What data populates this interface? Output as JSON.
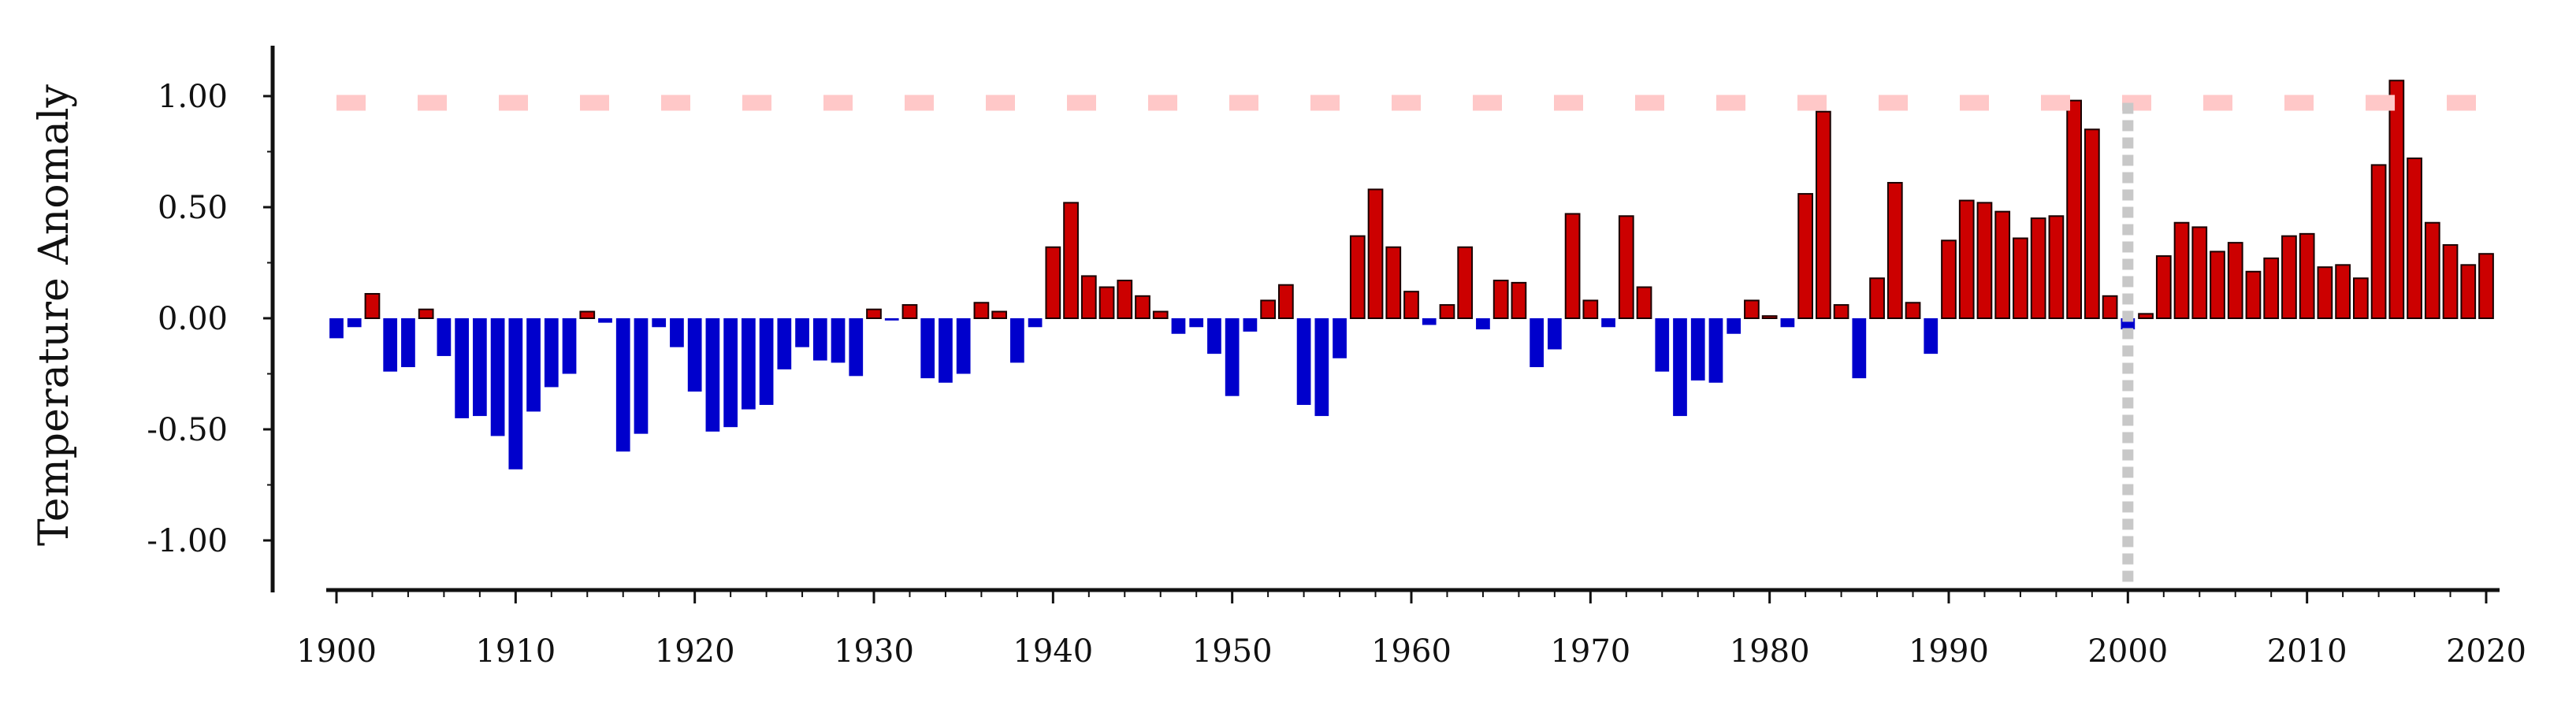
{
  "chart_data": {
    "type": "bar",
    "title": "",
    "xlabel": "",
    "ylabel": "Temperature Anomaly",
    "xlim": [
      1900,
      2020
    ],
    "ylim": [
      -1.2,
      1.2
    ],
    "x_ticks": [
      "1900",
      "1910",
      "1920",
      "1930",
      "1940",
      "1950",
      "1960",
      "1970",
      "1980",
      "1990",
      "2000",
      "2010",
      "2020"
    ],
    "y_ticks": [
      "1.00",
      "0.50",
      "0.00",
      "-0.50",
      "-1.00"
    ],
    "reference_line": {
      "y": 0.97,
      "style": "dashed"
    },
    "marker_line": {
      "x": 2000,
      "style": "dotted"
    },
    "colors": {
      "positive": "#cc0000",
      "negative": "#0000cc",
      "reference_line": "#ffc8c8",
      "marker_line": "#c8c8c8",
      "axis": "#111111"
    },
    "years": [
      1900,
      1901,
      1902,
      1903,
      1904,
      1905,
      1906,
      1907,
      1908,
      1909,
      1910,
      1911,
      1912,
      1913,
      1914,
      1915,
      1916,
      1917,
      1918,
      1919,
      1920,
      1921,
      1922,
      1923,
      1924,
      1925,
      1926,
      1927,
      1928,
      1929,
      1930,
      1931,
      1932,
      1933,
      1934,
      1935,
      1936,
      1937,
      1938,
      1939,
      1940,
      1941,
      1942,
      1943,
      1944,
      1945,
      1946,
      1947,
      1948,
      1949,
      1950,
      1951,
      1952,
      1953,
      1954,
      1955,
      1956,
      1957,
      1958,
      1959,
      1960,
      1961,
      1962,
      1963,
      1964,
      1965,
      1966,
      1967,
      1968,
      1969,
      1970,
      1971,
      1972,
      1973,
      1974,
      1975,
      1976,
      1977,
      1978,
      1979,
      1980,
      1981,
      1982,
      1983,
      1984,
      1985,
      1986,
      1987,
      1988,
      1989,
      1990,
      1991,
      1992,
      1993,
      1994,
      1995,
      1996,
      1997,
      1998,
      1999,
      2000,
      2001,
      2002,
      2003,
      2004,
      2005,
      2006,
      2007,
      2008,
      2009,
      2010,
      2011,
      2012,
      2013,
      2014,
      2015,
      2016,
      2017,
      2018,
      2019,
      2020
    ],
    "values": [
      -0.09,
      -0.04,
      0.11,
      -0.24,
      -0.22,
      0.04,
      -0.17,
      -0.45,
      -0.44,
      -0.53,
      -0.68,
      -0.42,
      -0.31,
      -0.25,
      0.03,
      -0.02,
      -0.6,
      -0.52,
      -0.04,
      -0.13,
      -0.33,
      -0.51,
      -0.49,
      -0.41,
      -0.39,
      -0.23,
      -0.13,
      -0.19,
      -0.2,
      -0.26,
      0.04,
      -0.01,
      0.06,
      -0.27,
      -0.29,
      -0.25,
      0.07,
      0.03,
      -0.2,
      -0.04,
      0.32,
      0.52,
      0.19,
      0.14,
      0.17,
      0.1,
      0.03,
      -0.07,
      -0.04,
      -0.16,
      -0.35,
      -0.06,
      0.08,
      0.15,
      -0.39,
      -0.44,
      -0.18,
      0.37,
      0.58,
      0.32,
      0.12,
      -0.03,
      0.06,
      0.32,
      -0.05,
      0.17,
      0.16,
      -0.22,
      -0.14,
      0.47,
      0.08,
      -0.04,
      0.46,
      0.14,
      -0.24,
      -0.44,
      -0.28,
      -0.29,
      -0.07,
      0.08,
      0.01,
      -0.04,
      0.56,
      0.93,
      0.06,
      -0.27,
      0.18,
      0.61,
      0.07,
      -0.16,
      0.35,
      0.53,
      0.52,
      0.48,
      0.36,
      0.45,
      0.46,
      0.98,
      0.85,
      0.1,
      -0.05,
      0.02,
      0.28,
      0.43,
      0.41,
      0.3,
      0.34,
      0.21,
      0.27,
      0.37,
      0.38,
      0.23,
      0.24,
      0.18,
      0.69,
      1.07,
      0.72,
      0.43,
      0.33,
      0.24,
      0.29
    ]
  }
}
